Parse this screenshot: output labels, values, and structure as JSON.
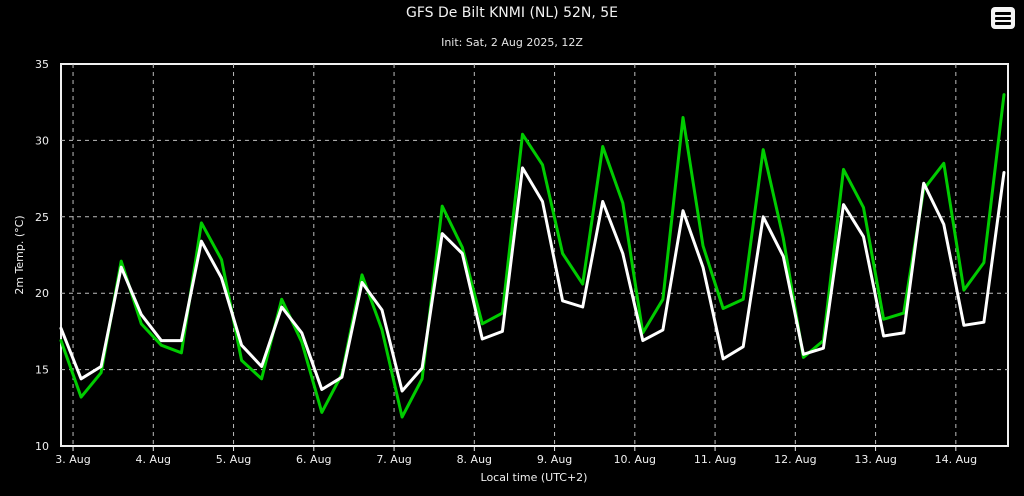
{
  "header": {
    "title": "GFS De Bilt KNMI (NL) 52N, 5E",
    "subtitle": "Init: Sat, 2 Aug 2025, 12Z",
    "menu_icon": "hamburger-menu-icon"
  },
  "chart_data": {
    "type": "line",
    "title": "GFS De Bilt KNMI (NL) 52N, 5E",
    "subtitle": "Init: Sat, 2 Aug 2025, 12Z",
    "xlabel": "Local time (UTC+2)",
    "ylabel": "2m Temp. (°C)",
    "ylim": [
      10,
      35
    ],
    "yticks": [
      10,
      15,
      20,
      25,
      30,
      35
    ],
    "xlim": [
      2.85,
      14.65
    ],
    "xticks": [
      {
        "x": 3,
        "label": "3. Aug"
      },
      {
        "x": 4,
        "label": "4. Aug"
      },
      {
        "x": 5,
        "label": "5. Aug"
      },
      {
        "x": 6,
        "label": "6. Aug"
      },
      {
        "x": 7,
        "label": "7. Aug"
      },
      {
        "x": 8,
        "label": "8. Aug"
      },
      {
        "x": 9,
        "label": "9. Aug"
      },
      {
        "x": 10,
        "label": "10. Aug"
      },
      {
        "x": 11,
        "label": "11. Aug"
      },
      {
        "x": 12,
        "label": "12. Aug"
      },
      {
        "x": 13,
        "label": "13. Aug"
      },
      {
        "x": 14,
        "label": "14. Aug"
      }
    ],
    "grid": true,
    "x": [
      2.85,
      3.1,
      3.35,
      3.6,
      3.85,
      4.1,
      4.35,
      4.6,
      4.85,
      5.1,
      5.35,
      5.6,
      5.85,
      6.1,
      6.35,
      6.6,
      6.85,
      7.1,
      7.35,
      7.6,
      7.85,
      8.1,
      8.35,
      8.6,
      8.85,
      9.1,
      9.35,
      9.6,
      9.85,
      10.1,
      10.35,
      10.6,
      10.85,
      11.1,
      11.35,
      11.6,
      11.85,
      12.1,
      12.35,
      12.6,
      12.85,
      13.1,
      13.35,
      13.6,
      13.85,
      14.1,
      14.35,
      14.6
    ],
    "series": [
      {
        "color": "#00cc00",
        "values": [
          16.9,
          13.2,
          14.8,
          22.1,
          18.0,
          16.6,
          16.1,
          24.6,
          22.2,
          15.6,
          14.4,
          19.6,
          16.8,
          12.2,
          14.7,
          21.2,
          17.6,
          11.9,
          14.4,
          25.7,
          23.0,
          18.0,
          18.7,
          30.4,
          28.4,
          22.6,
          20.6,
          29.6,
          25.9,
          17.4,
          19.6,
          31.5,
          23.1,
          19.0,
          19.6,
          29.4,
          23.6,
          15.8,
          16.9,
          28.1,
          25.6,
          18.3,
          18.7,
          26.8,
          28.5,
          20.2,
          22.0,
          33.0
        ]
      },
      {
        "color": "#ffffff",
        "values": [
          17.7,
          14.4,
          15.2,
          21.7,
          18.6,
          16.9,
          16.9,
          23.4,
          21.0,
          16.6,
          15.2,
          19.1,
          17.4,
          13.7,
          14.5,
          20.7,
          18.9,
          13.6,
          15.1,
          23.9,
          22.6,
          17.0,
          17.5,
          28.2,
          26.0,
          19.5,
          19.1,
          26.0,
          22.6,
          16.9,
          17.6,
          25.4,
          21.7,
          15.7,
          16.5,
          25.0,
          22.4,
          16.0,
          16.4,
          25.8,
          23.7,
          17.2,
          17.4,
          27.2,
          24.5,
          17.9,
          18.1,
          27.9
        ]
      }
    ]
  }
}
